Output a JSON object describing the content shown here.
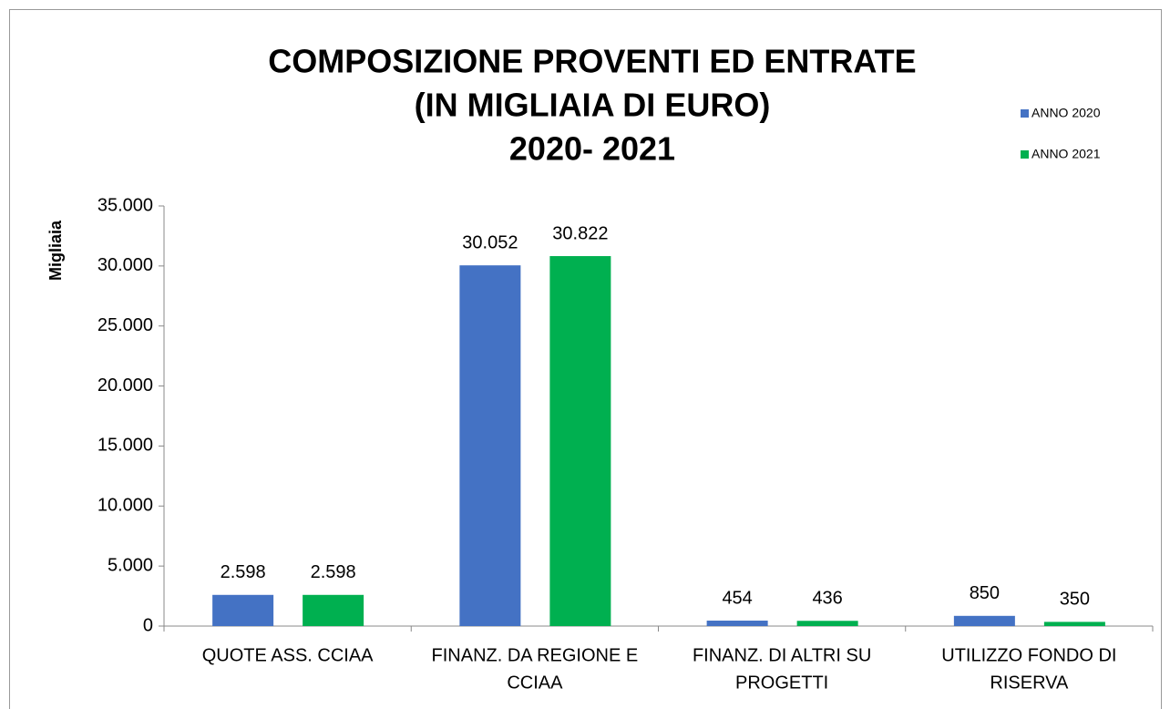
{
  "chart_data": {
    "type": "bar",
    "title": [
      "COMPOSIZIONE PROVENTI ED ENTRATE",
      "(IN MIGLIAIA DI EURO)",
      "2020- 2021"
    ],
    "y_label": "Migliaia",
    "categories": [
      [
        "QUOTE ASS. CCIAA"
      ],
      [
        "FINANZ.  DA REGIONE E",
        "CCIAA"
      ],
      [
        "FINANZ. DI ALTRI SU",
        "PROGETTI"
      ],
      [
        "UTILIZZO FONDO DI",
        "RISERVA"
      ]
    ],
    "series": [
      {
        "name": "ANNO 2020",
        "color": "#4472c4",
        "values": [
          2598,
          30052,
          454,
          850
        ],
        "value_labels": [
          "2.598",
          "30.052",
          "454",
          "850"
        ]
      },
      {
        "name": "ANNO 2021",
        "color": "#00b050",
        "values": [
          2598,
          30822,
          436,
          350
        ],
        "value_labels": [
          "2.598",
          "30.822",
          "436",
          "350"
        ]
      }
    ],
    "ylim": [
      0,
      35000
    ],
    "yticks": [
      0,
      {
        "value": 5000,
        "label": "5.000"
      },
      {
        "value": 10000,
        "label": "10.000"
      },
      {
        "value": 15000,
        "label": "15.000"
      },
      {
        "value": 20000,
        "label": "20.000"
      },
      {
        "value": 25000,
        "label": "25.000"
      },
      {
        "value": 30000,
        "label": "30.000"
      },
      {
        "value": 35000,
        "label": "35.000"
      }
    ],
    "legend": "top-right",
    "grid": false
  }
}
